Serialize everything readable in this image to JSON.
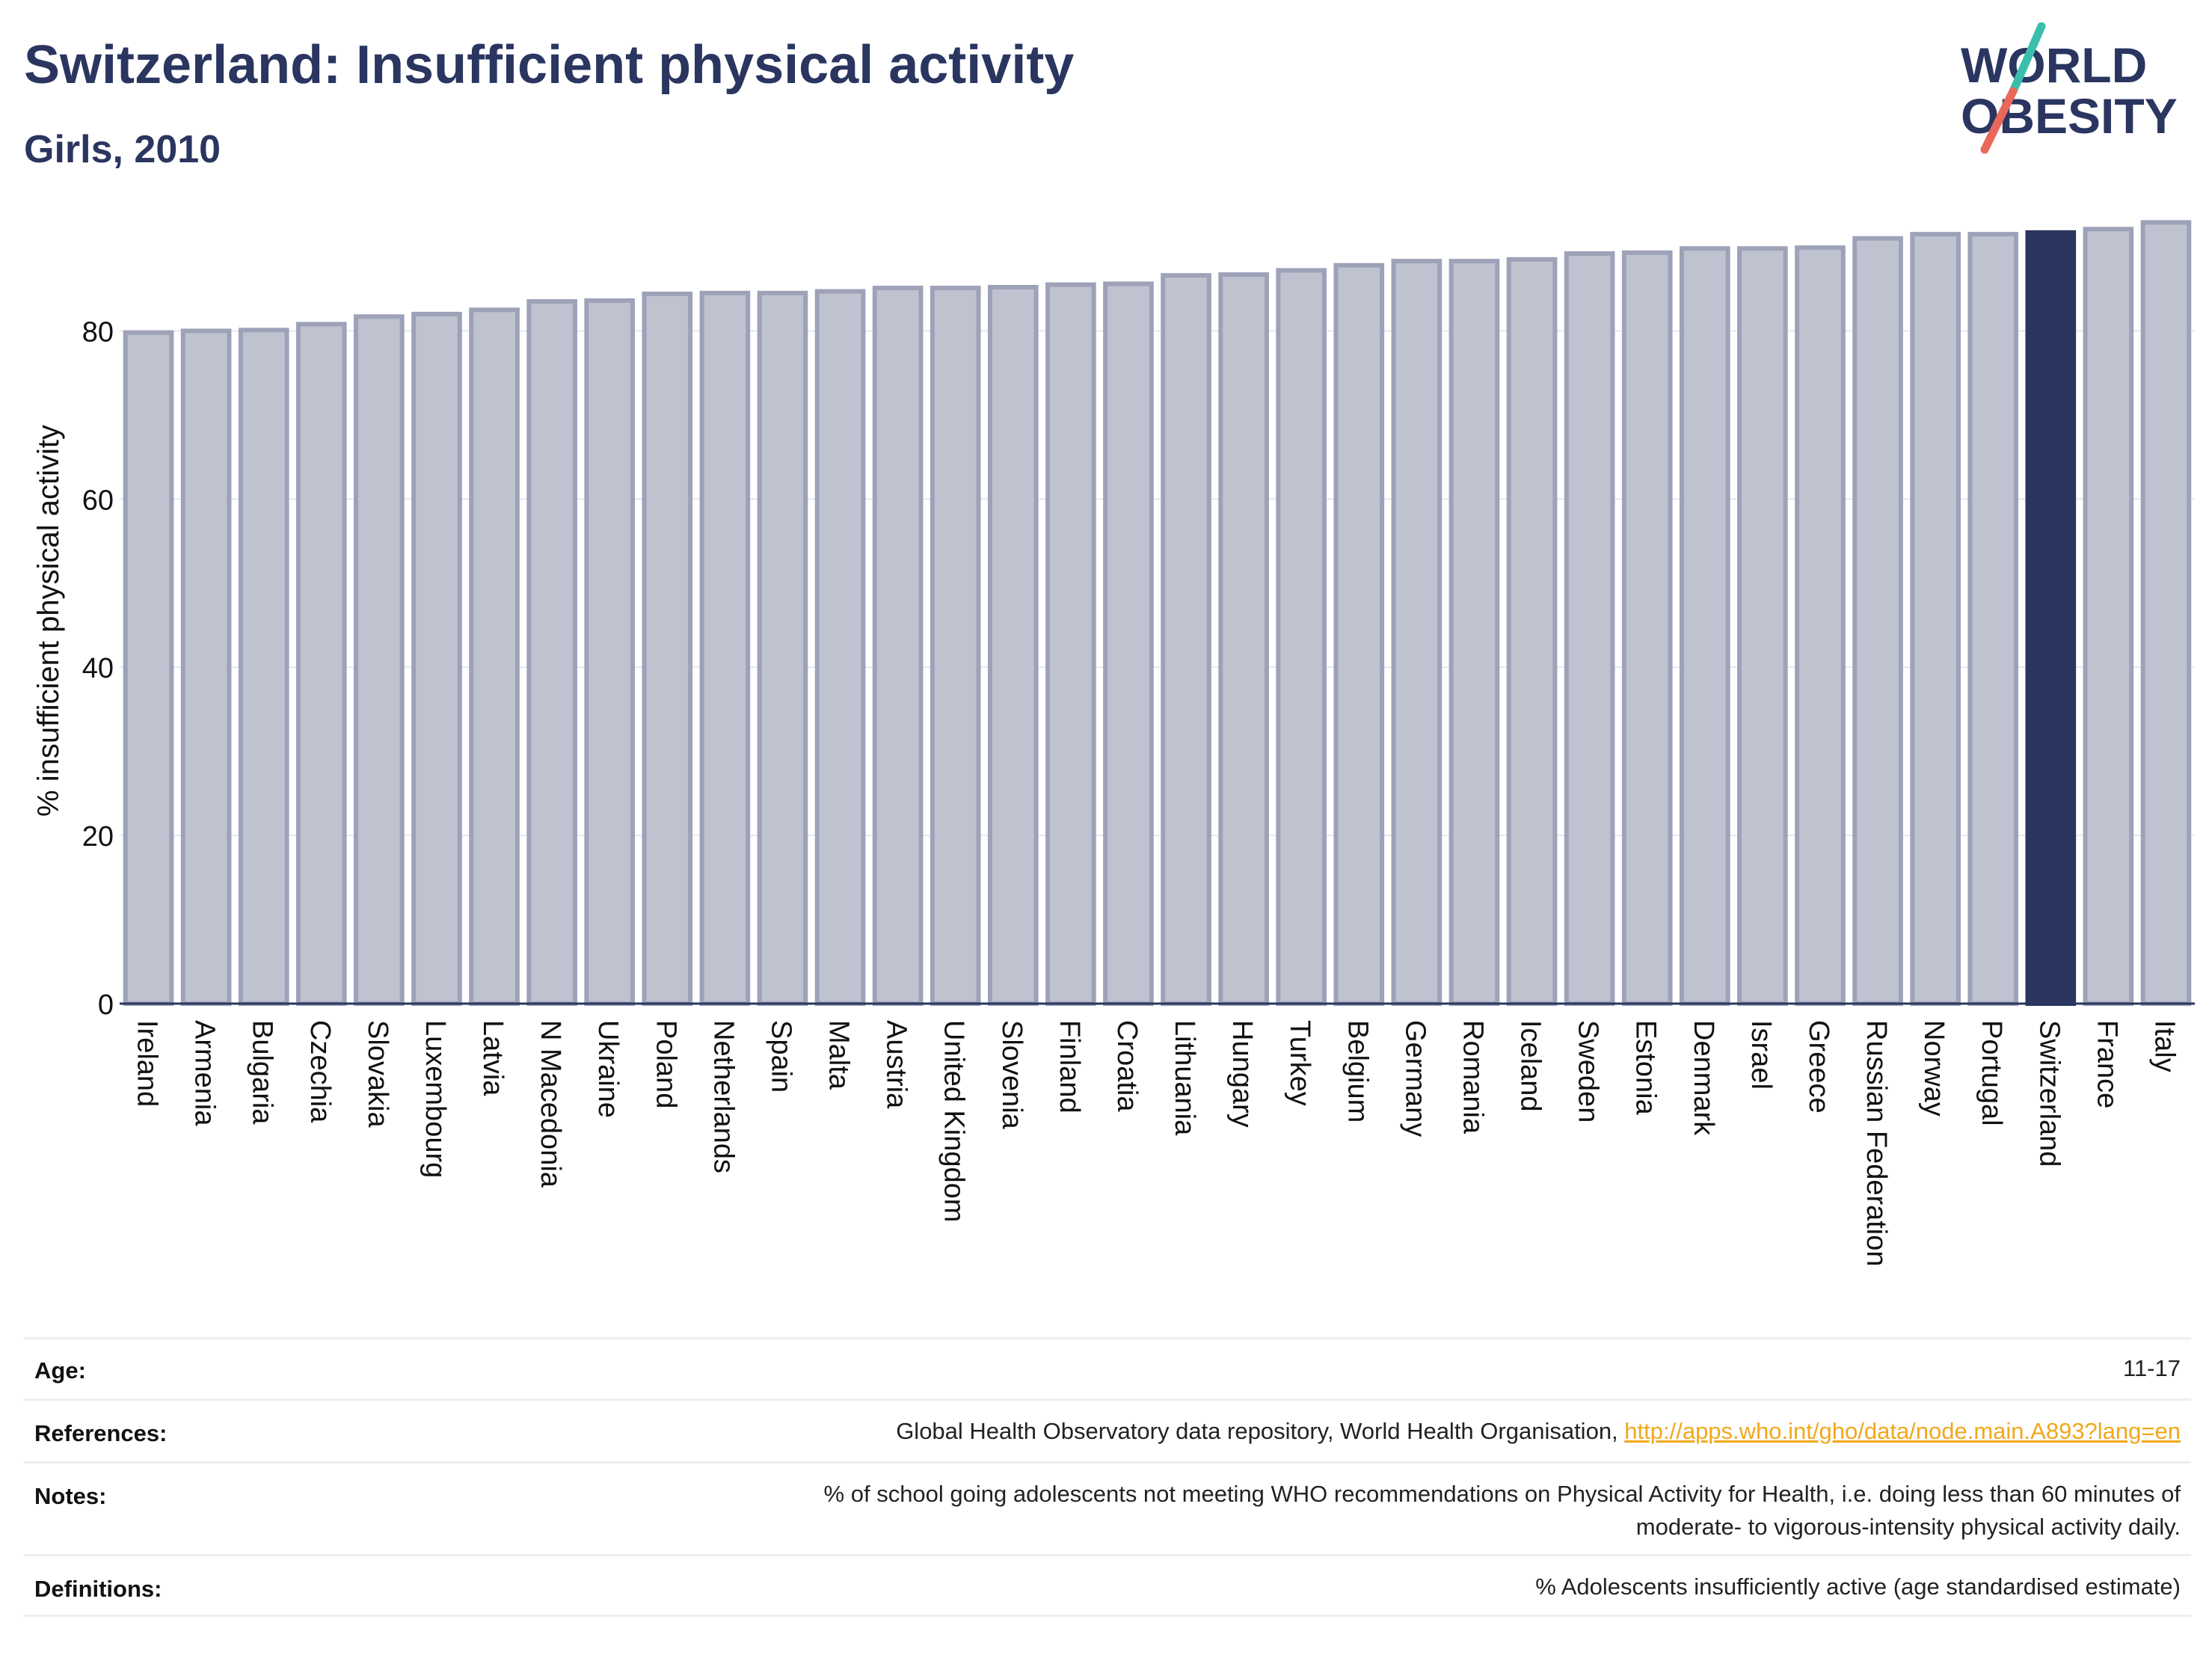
{
  "header": {
    "title": "Switzerland: Insufficient physical activity",
    "subtitle": "Girls, 2010"
  },
  "logo": {
    "line1": "WORLD",
    "line2": "OBESITY",
    "accent_colors": [
      "#3bbfad",
      "#e8685a"
    ]
  },
  "colors": {
    "bar": "#bfc2cf",
    "bar_border": "#9ea2b8",
    "highlight": "#2a3560",
    "axis_text": "#111111"
  },
  "chart_data": {
    "type": "bar",
    "title": "Switzerland: Insufficient physical activity",
    "subtitle": "Girls, 2010",
    "xlabel": "",
    "ylabel": "% insufficient physical activity",
    "ylim": [
      0,
      94
    ],
    "yticks": [
      0,
      20,
      40,
      60,
      80
    ],
    "grid": true,
    "highlight": "Switzerland",
    "categories": [
      "Ireland",
      "Armenia",
      "Bulgaria",
      "Czechia",
      "Slovakia",
      "Luxembourg",
      "Latvia",
      "N Macedonia",
      "Ukraine",
      "Poland",
      "Netherlands",
      "Spain",
      "Malta",
      "Austria",
      "United Kingdom",
      "Slovenia",
      "Finland",
      "Croatia",
      "Lithuania",
      "Hungary",
      "Turkey",
      "Belgium",
      "Germany",
      "Romania",
      "Iceland",
      "Sweden",
      "Estonia",
      "Denmark",
      "Israel",
      "Greece",
      "Russian Federation",
      "Norway",
      "Portugal",
      "Switzerland",
      "France",
      "Italy"
    ],
    "values": [
      79.8,
      80.0,
      80.1,
      80.8,
      81.7,
      82.0,
      82.5,
      83.5,
      83.6,
      84.4,
      84.5,
      84.5,
      84.7,
      85.1,
      85.1,
      85.2,
      85.5,
      85.6,
      86.6,
      86.7,
      87.2,
      87.8,
      88.3,
      88.3,
      88.5,
      89.2,
      89.3,
      89.8,
      89.8,
      89.9,
      91.0,
      91.5,
      91.5,
      91.7,
      92.1,
      92.9
    ]
  },
  "meta": {
    "age_label": "Age:",
    "age_value": "11-17",
    "references_label": "References:",
    "references_text": "Global Health Observatory data repository, World Health Organisation, ",
    "references_link": "http://apps.who.int/gho/data/node.main.A893?lang=en",
    "notes_label": "Notes:",
    "notes_line1": "% of school going adolescents not meeting WHO recommendations on Physical Activity for Health, i.e. doing less than 60 minutes of",
    "notes_line2": "moderate- to vigorous-intensity physical activity daily.",
    "definitions_label": "Definitions:",
    "definitions_value": "% Adolescents insufficiently active (age standardised estimate)"
  }
}
